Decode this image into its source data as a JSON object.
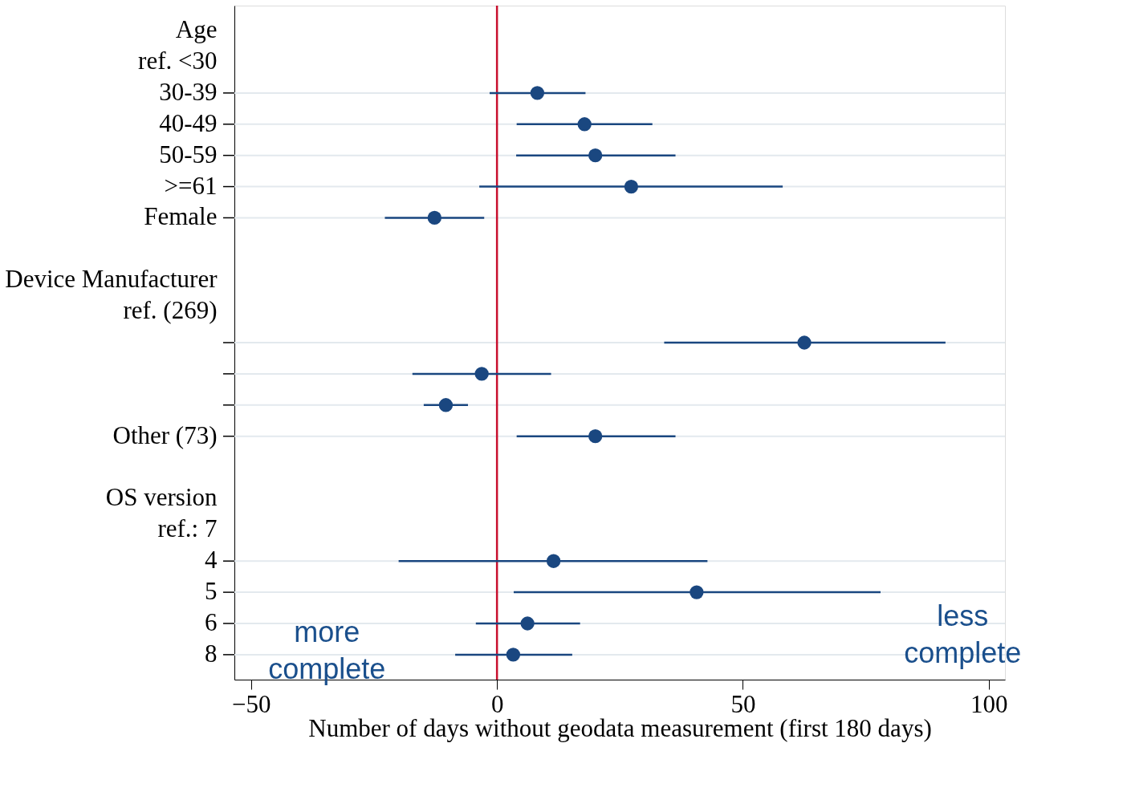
{
  "chart_data": {
    "type": "scatter",
    "orientation": "horizontal",
    "categories": [
      "Age",
      "ref. <30",
      "30-39",
      "40-49",
      "50-59",
      ">=61",
      "Female",
      null,
      "Device Manufacturer",
      "ref. (269)",
      null,
      null,
      null,
      "Other (73)",
      null,
      "OS version",
      "ref.: 7",
      "4",
      "5",
      "6",
      "8"
    ],
    "series": [
      {
        "color": "#1a4780",
        "values": [
          null,
          null,
          8.2,
          17.8,
          20.0,
          27.3,
          -12.7,
          null,
          null,
          null,
          62.5,
          -3.1,
          -10.4,
          20.0,
          null,
          null,
          null,
          11.5,
          40.6,
          6.2,
          3.3
        ],
        "errors": [
          null,
          null,
          [
            -1.5,
            18.0
          ],
          [
            4.0,
            31.6
          ],
          [
            3.9,
            36.3
          ],
          [
            -3.6,
            58.1
          ],
          [
            -22.8,
            -2.6
          ],
          null,
          null,
          null,
          [
            34.0,
            91.2
          ],
          [
            -17.2,
            11.0
          ],
          [
            -14.9,
            -5.9
          ],
          [
            4.0,
            36.3
          ],
          null,
          null,
          null,
          [
            -20.0,
            42.8
          ],
          [
            3.4,
            78.0
          ],
          [
            -4.3,
            16.9
          ],
          [
            -8.5,
            15.3
          ]
        ]
      }
    ],
    "xlabel": "Number of days without geodata measurement (first 180 days)",
    "xlim": [
      -53.4,
      103.3
    ],
    "xticks": [
      -50,
      0,
      50,
      100
    ],
    "ref_lines": [
      {
        "axis": "x",
        "value": 0,
        "color": "#c8102e"
      }
    ],
    "annotations": [
      "more complete",
      "less complete"
    ],
    "grid": "y",
    "marker": "circle"
  }
}
